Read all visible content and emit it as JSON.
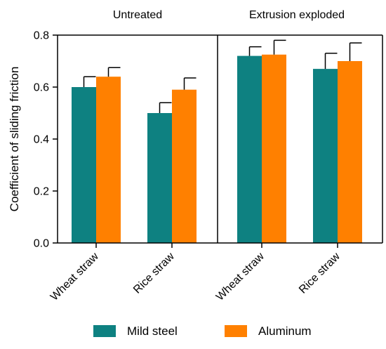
{
  "chart_data": {
    "type": "bar",
    "ylabel": "Coefficient of sliding friction",
    "ylim": [
      0,
      0.8
    ],
    "yticks": [
      "0.0",
      "0.2",
      "0.4",
      "0.6",
      "0.8"
    ],
    "panels": [
      {
        "title": "Untreated",
        "categories": [
          "Wheat straw",
          "Rice straw"
        ]
      },
      {
        "title": "Extrusion exploded",
        "categories": [
          "Wheat straw",
          "Rice straw"
        ]
      }
    ],
    "series": [
      {
        "name": "Mild steel",
        "color": "#0e8181",
        "values": [
          [
            0.6,
            0.5
          ],
          [
            0.72,
            0.67
          ]
        ],
        "errors": [
          [
            0.04,
            0.04
          ],
          [
            0.035,
            0.06
          ]
        ]
      },
      {
        "name": "Aluminum",
        "color": "#ff8000",
        "values": [
          [
            0.64,
            0.59
          ],
          [
            0.725,
            0.7
          ]
        ],
        "errors": [
          [
            0.035,
            0.045
          ],
          [
            0.055,
            0.07
          ]
        ]
      }
    ],
    "legend": "bottom"
  }
}
